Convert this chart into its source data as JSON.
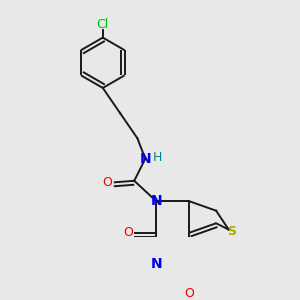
{
  "bg_color": "#e8e8e8",
  "bond_color": "#1a1a1a",
  "bond_width": 1.4,
  "dbo": 0.008,
  "colors": {
    "C": "#1a1a1a",
    "N": "#0000ee",
    "O": "#ee0000",
    "S": "#aaaa00",
    "Cl": "#00bb00",
    "H": "#008888"
  }
}
